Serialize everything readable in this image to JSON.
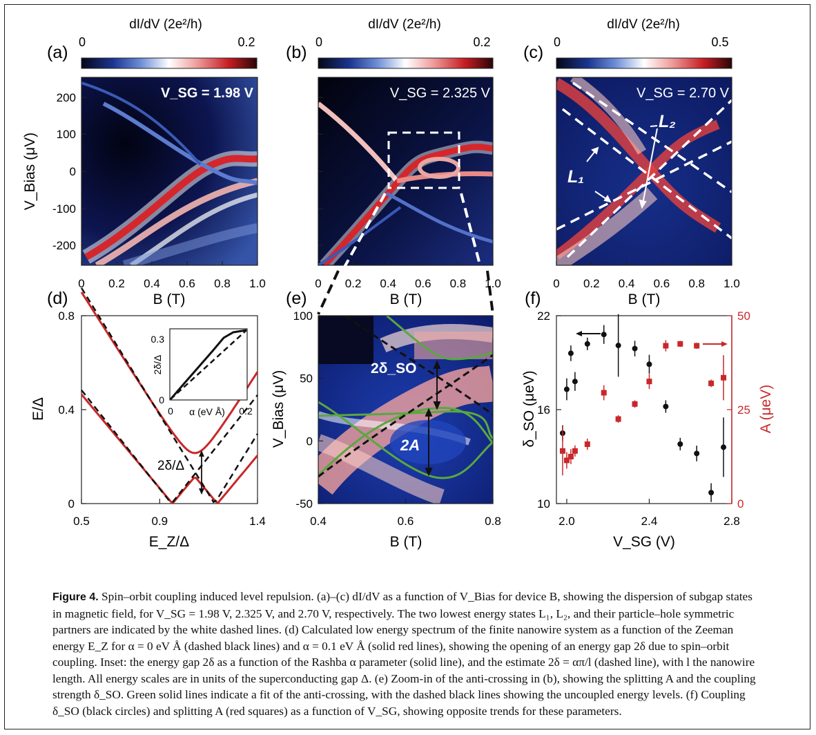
{
  "figure": {
    "colorbar_label": "dI/dV (2e²/h)",
    "colorbars": [
      {
        "min": "0",
        "max": "0.2"
      },
      {
        "min": "0",
        "max": "0.2"
      },
      {
        "min": "0",
        "max": "0.5"
      }
    ],
    "panel_labels": [
      "(a)",
      "(b)",
      "(c)",
      "(d)",
      "(e)",
      "(f)"
    ],
    "vsg_labels": [
      "V_SG = 1.98 V",
      "V_SG = 2.325 V",
      "V_SG = 2.70 V"
    ],
    "level_labels": [
      "L₁",
      "L₂"
    ],
    "top_row": {
      "ylabel": "V_Bias (μV)",
      "xlabel": "B (T)",
      "yticks": [
        "200",
        "100",
        "0",
        "-100",
        "-200"
      ],
      "xticks": [
        "0",
        "0.2",
        "0.4",
        "0.6",
        "0.8",
        "1.0"
      ]
    },
    "panel_d": {
      "ylabel": "E/Δ",
      "xlabel": "E_Z/Δ",
      "yticks": [
        "0.8",
        "0.4",
        "0"
      ],
      "xticks": [
        "0.5",
        "0.9",
        "1.4"
      ],
      "gap_label": "2δ/Δ",
      "inset": {
        "ylabel": "2δ/Δ",
        "xlabel": "α (eV Å)",
        "yticks": [
          "0.3",
          "0"
        ],
        "xticks": [
          "0",
          "0.2"
        ]
      }
    },
    "panel_e": {
      "ylabel": "V_Bias (μV)",
      "xlabel": "B (T)",
      "yticks": [
        "100",
        "50",
        "0",
        "-50"
      ],
      "xticks": [
        "0.4",
        "0.6",
        "0.8"
      ],
      "labels": [
        "2δ_SO",
        "2A"
      ]
    },
    "panel_f": {
      "ylabel_left": "δ_SO (μeV)",
      "ylabel_right": "A (μeV)",
      "xlabel": "V_SG (V)",
      "yticks_left": [
        "22",
        "16",
        "10"
      ],
      "yticks_right": [
        "50",
        "25",
        "0"
      ],
      "xticks": [
        "2.0",
        "2.4",
        "2.8"
      ],
      "colors": {
        "delta": "#111111",
        "A": "#c8282a"
      }
    }
  },
  "chart_data": {
    "type": "scatter",
    "title": "",
    "xlabel": "V_SG (V)",
    "ylabel": "δ_SO (μeV)",
    "y2label": "A (μeV)",
    "xlim": [
      1.95,
      2.8
    ],
    "ylim": [
      10,
      22
    ],
    "y2lim": [
      0,
      50
    ],
    "series": [
      {
        "name": "δ_SO",
        "axis": "left",
        "color": "#111111",
        "marker": "circle",
        "x": [
          1.98,
          2.0,
          2.02,
          2.04,
          2.1,
          2.18,
          2.25,
          2.33,
          2.4,
          2.48,
          2.55,
          2.63,
          2.7,
          2.76
        ],
        "y": [
          14.5,
          17.3,
          19.6,
          17.8,
          20.2,
          20.8,
          20.1,
          19.9,
          18.9,
          16.2,
          13.8,
          13.2,
          10.7,
          13.6
        ],
        "err": [
          0.5,
          0.7,
          0.5,
          0.6,
          0.4,
          0.6,
          2.0,
          0.5,
          0.6,
          0.4,
          0.4,
          0.5,
          0.6,
          1.9
        ]
      },
      {
        "name": "A",
        "axis": "right",
        "color": "#c8282a",
        "marker": "square",
        "x": [
          1.98,
          2.0,
          2.02,
          2.04,
          2.1,
          2.18,
          2.25,
          2.33,
          2.4,
          2.48,
          2.55,
          2.63,
          2.7,
          2.76
        ],
        "y": [
          14.0,
          11.5,
          12.5,
          14.0,
          15.8,
          29.5,
          22.5,
          26.5,
          32.5,
          42.0,
          42.5,
          42.0,
          32.0,
          33.5
        ],
        "err": [
          6.5,
          2.2,
          2.0,
          1.5,
          1.5,
          2.0,
          1.0,
          1.0,
          2.0,
          1.5,
          0.8,
          0.8,
          1.0,
          6.0
        ]
      }
    ]
  },
  "caption": {
    "label": "Figure 4.",
    "text": "Spin–orbit coupling induced level repulsion. (a)–(c) dI/dV as a function of V_Bias for device B, showing the dispersion of subgap states in magnetic field, for V_SG = 1.98 V, 2.325 V, and 2.70 V, respectively. The two lowest energy states L₁, L₂, and their particle–hole symmetric partners are indicated by the white dashed lines. (d) Calculated low energy spectrum of the finite nanowire system as a function of the Zeeman energy E_Z for α = 0 eV Å (dashed black lines) and α = 0.1 eV Å (solid red lines), showing the opening of an energy gap 2δ due to spin–orbit coupling. Inset: the energy gap 2δ as a function of the Rashba α parameter (solid line), and the estimate 2δ = απ/l (dashed line), with l the nanowire length. All energy scales are in units of the superconducting gap Δ. (e) Zoom-in of the anti-crossing in (b), showing the splitting A and the coupling strength δ_SO. Green solid lines indicate a fit of the anti-crossing, with the dashed black lines showing the uncoupled energy levels. (f) Coupling δ_SO (black circles) and splitting A (red squares) as a function of V_SG, showing opposite trends for these parameters."
  }
}
